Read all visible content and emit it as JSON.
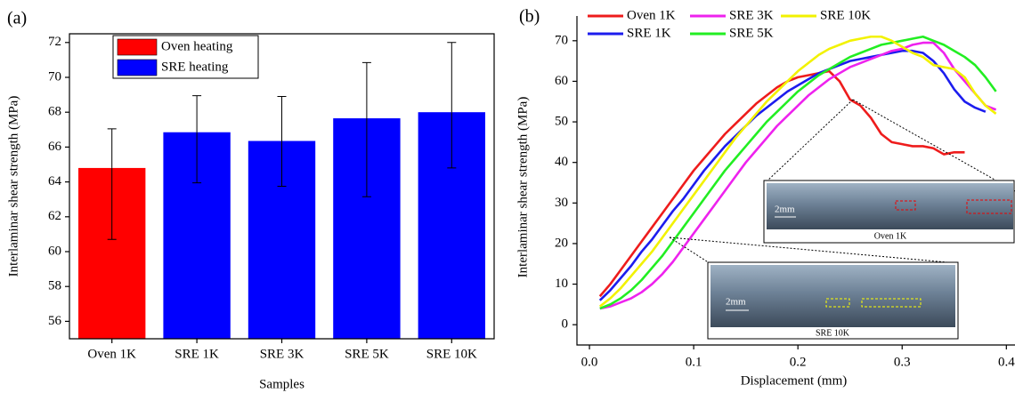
{
  "chart_data": [
    {
      "type": "bar",
      "panel_label": "(a)",
      "xlabel": "Samples",
      "ylabel": "Interlaminar shear strength (MPa)",
      "categories": [
        "Oven 1K",
        "SRE 1K",
        "SRE 3K",
        "SRE 5K",
        "SRE 10K"
      ],
      "values": [
        64.8,
        66.85,
        66.35,
        67.65,
        68.0
      ],
      "error_plus": [
        2.25,
        2.1,
        2.55,
        3.2,
        4.0
      ],
      "error_minus": [
        4.1,
        2.9,
        2.6,
        4.5,
        3.2
      ],
      "colors": [
        "#ff0000",
        "#0000ff",
        "#0000ff",
        "#0000ff",
        "#0000ff"
      ],
      "legend": [
        {
          "label": "Oven heating",
          "color": "#ff0000"
        },
        {
          "label": "SRE heating",
          "color": "#0000ff"
        }
      ],
      "ylim": [
        55,
        72.5
      ],
      "yticks": [
        56,
        58,
        60,
        62,
        64,
        66,
        68,
        70,
        72
      ]
    },
    {
      "type": "line",
      "panel_label": "(b)",
      "xlabel": "Displacement (mm)",
      "ylabel": "Interlaminar shear strength (MPa)",
      "x": [
        0.01,
        0.02,
        0.03,
        0.04,
        0.05,
        0.06,
        0.07,
        0.08,
        0.09,
        0.1,
        0.11,
        0.12,
        0.13,
        0.14,
        0.15,
        0.16,
        0.17,
        0.18,
        0.19,
        0.2,
        0.21,
        0.22,
        0.23,
        0.24,
        0.25,
        0.26,
        0.27,
        0.28,
        0.29,
        0.3,
        0.31,
        0.32,
        0.33,
        0.34,
        0.35,
        0.36,
        0.37,
        0.38,
        0.39
      ],
      "series": [
        {
          "name": "Oven 1K",
          "color": "#ee1c1c",
          "values": [
            7,
            10,
            13.5,
            17,
            20.5,
            24,
            27.5,
            31,
            34.5,
            38,
            41,
            44,
            47,
            49.5,
            52,
            54.5,
            56.5,
            58.5,
            60,
            61,
            61.5,
            62,
            62.5,
            60,
            55.5,
            54,
            51,
            47,
            45,
            44.5,
            44,
            44,
            43.5,
            42,
            42.5,
            42.5,
            null,
            null,
            null
          ]
        },
        {
          "name": "SRE 1K",
          "color": "#1c1cee",
          "values": [
            6,
            8.5,
            11.5,
            14.5,
            18,
            21,
            24.5,
            28,
            31,
            34.5,
            38,
            41,
            44,
            46.5,
            49,
            51.5,
            53.5,
            55.5,
            57.5,
            59,
            60.5,
            62,
            63,
            64,
            65,
            65.5,
            66,
            66.5,
            67,
            67.5,
            67.5,
            67,
            65,
            62,
            58,
            55,
            53.5,
            52.5,
            null
          ]
        },
        {
          "name": "SRE 3K",
          "color": "#ee22ee",
          "values": [
            4,
            4.5,
            5.5,
            6.5,
            8,
            10,
            12.5,
            15.5,
            19,
            22.5,
            26,
            29.5,
            33,
            36.5,
            40,
            43,
            46,
            49,
            51.5,
            54,
            56.5,
            58.5,
            60.5,
            62,
            63.5,
            64.5,
            65.5,
            66.5,
            67.5,
            68,
            69,
            69.5,
            69.5,
            67,
            63,
            60,
            57,
            54,
            53
          ]
        },
        {
          "name": "SRE 5K",
          "color": "#22ee22",
          "values": [
            4,
            5,
            6.5,
            8.5,
            11,
            14,
            17,
            20.5,
            24,
            27.5,
            31,
            34.5,
            38,
            41,
            44,
            47,
            50,
            52.5,
            55,
            57.5,
            59.5,
            61.5,
            63,
            64.5,
            66,
            67,
            68,
            69,
            69.5,
            70,
            70.5,
            71,
            70,
            69,
            67.5,
            66,
            64,
            61,
            57.5
          ]
        },
        {
          "name": "SRE 10K",
          "color": "#f2f200",
          "values": [
            4.5,
            6.5,
            9,
            12,
            15,
            18,
            21.5,
            25,
            28.5,
            32,
            35.5,
            39,
            42.5,
            46,
            49,
            52,
            55,
            57.5,
            60,
            62.5,
            64.5,
            66.5,
            68,
            69,
            70,
            70.5,
            71,
            71,
            70,
            68.5,
            67,
            66,
            64,
            63.5,
            63,
            61,
            57,
            54,
            52
          ]
        }
      ],
      "xlim": [
        -0.012,
        0.404
      ],
      "xticks": [
        {
          "value": 0,
          "label": "0.0"
        },
        0.1,
        0.2,
        0.3,
        0.4
      ],
      "ylim": [
        -5,
        75
      ],
      "yticks": [
        0,
        10,
        20,
        30,
        40,
        50,
        60,
        70
      ],
      "insets": [
        {
          "label": "Oven 1K",
          "scale_label": "2mm"
        },
        {
          "label": "SRE 10K",
          "scale_label": "2mm"
        }
      ]
    }
  ]
}
